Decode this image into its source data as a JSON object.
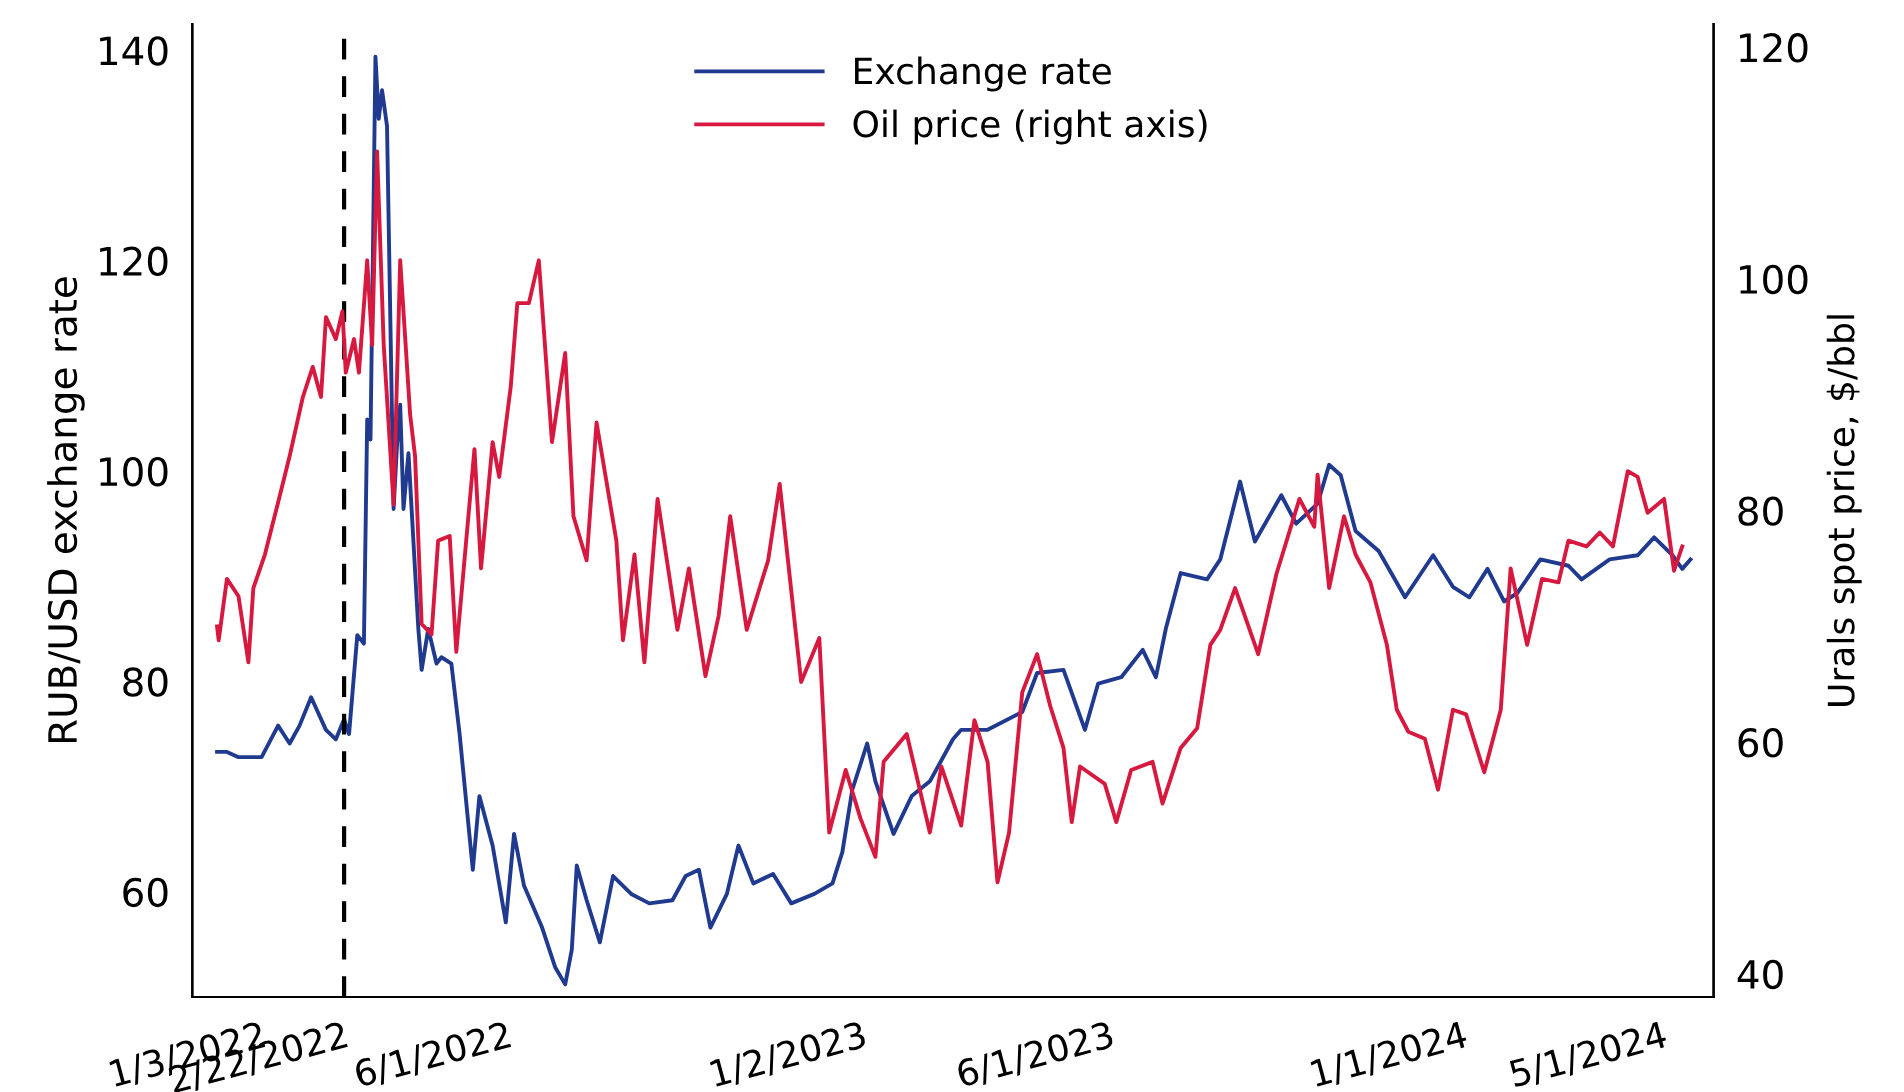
{
  "chart_data": {
    "type": "line",
    "ylabel": "RUB/USD exchange rate",
    "y2label": "Urals spot price, $/bbl",
    "xlim": [
      "2021-11-22",
      "2024-06-01"
    ],
    "xticks": [
      {
        "value": "2022-01-03",
        "label": "1/3/2022"
      },
      {
        "value": "2022-02-22",
        "label": "2/22/2022"
      },
      {
        "value": "2022-06-01",
        "label": "6/1/2022"
      },
      {
        "value": "2023-01-02",
        "label": "1/2/2023"
      },
      {
        "value": "2023-06-01",
        "label": "6/1/2023"
      },
      {
        "value": "2024-01-01",
        "label": "1/1/2024"
      },
      {
        "value": "2024-05-01",
        "label": "5/1/2024"
      }
    ],
    "ylim": [
      50,
      142.5
    ],
    "yticks": [
      60,
      80,
      100,
      120,
      140
    ],
    "y2lim": [
      38,
      122
    ],
    "y2ticks": [
      40,
      60,
      80,
      100,
      120
    ],
    "legend": "top",
    "grid": false,
    "ref_lines": [
      {
        "axis": "x",
        "value": "2022-02-22",
        "color": "#000000",
        "line_style": "dashed"
      }
    ],
    "series": [
      {
        "name": "Exchange rate",
        "color": "#1f3a8f",
        "axis": "y",
        "x": [
          "2021-12-07",
          "2021-12-13",
          "2021-12-20",
          "2022-01-03",
          "2022-01-13",
          "2022-01-20",
          "2022-01-26",
          "2022-02-02",
          "2022-02-11",
          "2022-02-17",
          "2022-02-22",
          "2022-02-25",
          "2022-03-02",
          "2022-03-06",
          "2022-03-08",
          "2022-03-10",
          "2022-03-13",
          "2022-03-15",
          "2022-03-17",
          "2022-03-20",
          "2022-03-24",
          "2022-03-26",
          "2022-03-28",
          "2022-03-30",
          "2022-04-02",
          "2022-04-08",
          "2022-04-10",
          "2022-04-14",
          "2022-04-19",
          "2022-04-22",
          "2022-04-28",
          "2022-05-03",
          "2022-05-11",
          "2022-05-15",
          "2022-05-23",
          "2022-05-31",
          "2022-06-05",
          "2022-06-11",
          "2022-06-22",
          "2022-06-30",
          "2022-07-06",
          "2022-07-10",
          "2022-07-13",
          "2022-07-19",
          "2022-07-27",
          "2022-08-04",
          "2022-08-15",
          "2022-08-26",
          "2022-09-09",
          "2022-09-17",
          "2022-09-25",
          "2022-10-02",
          "2022-10-12",
          "2022-10-19",
          "2022-10-28",
          "2022-11-09",
          "2022-11-20",
          "2022-12-04",
          "2022-12-15",
          "2022-12-21",
          "2022-12-27",
          "2023-01-05",
          "2023-01-10",
          "2023-01-21",
          "2023-02-01",
          "2023-02-12",
          "2023-02-26",
          "2023-03-03",
          "2023-03-19",
          "2023-04-09",
          "2023-04-18",
          "2023-05-04",
          "2023-05-17",
          "2023-05-25",
          "2023-06-08",
          "2023-06-21",
          "2023-06-29",
          "2023-07-05",
          "2023-07-14",
          "2023-07-30",
          "2023-08-07",
          "2023-08-19",
          "2023-08-28",
          "2023-09-13",
          "2023-09-22",
          "2023-10-05",
          "2023-10-12",
          "2023-10-19",
          "2023-10-28",
          "2023-11-11",
          "2023-11-27",
          "2023-12-14",
          "2023-12-26",
          "2024-01-05",
          "2024-01-16",
          "2024-01-26",
          "2024-02-03",
          "2024-02-17",
          "2024-03-05",
          "2024-03-13",
          "2024-03-30",
          "2024-04-16",
          "2024-04-26",
          "2024-05-07",
          "2024-05-13",
          "2024-05-18"
        ],
        "values": [
          73.3,
          73.3,
          72.8,
          72.8,
          75.8,
          74.1,
          75.8,
          78.5,
          75.4,
          74.5,
          76.4,
          75.0,
          84.4,
          83.6,
          104.9,
          103.0,
          139.4,
          133.5,
          136.2,
          132.8,
          96.4,
          102.3,
          106.3,
          96.4,
          101.7,
          85.0,
          81.1,
          85.0,
          81.7,
          82.3,
          81.7,
          75.0,
          62.1,
          69.1,
          64.4,
          57.1,
          65.5,
          60.6,
          56.6,
          52.8,
          51.2,
          54.5,
          62.5,
          59.2,
          55.2,
          61.5,
          59.8,
          58.9,
          59.2,
          61.5,
          62.1,
          56.6,
          59.8,
          64.4,
          60.8,
          61.7,
          58.9,
          59.8,
          60.8,
          63.8,
          69.7,
          74.1,
          70.5,
          65.5,
          69.1,
          70.5,
          74.5,
          75.4,
          75.4,
          77.1,
          80.8,
          81.1,
          75.4,
          79.8,
          80.4,
          83.0,
          80.4,
          85.0,
          90.3,
          89.7,
          91.6,
          99.0,
          93.3,
          97.7,
          95.0,
          96.9,
          100.6,
          99.6,
          94.3,
          92.4,
          88.0,
          92.0,
          89.0,
          88.0,
          90.7,
          87.6,
          88.4,
          91.6,
          91.0,
          89.7,
          91.6,
          92.0,
          93.7,
          92.0,
          90.7,
          91.6
        ]
      },
      {
        "name": "Oil price (right axis)",
        "color": "#d7193f",
        "axis": "y2",
        "x": [
          "2021-12-07",
          "2021-12-08",
          "2021-12-13",
          "2021-12-20",
          "2021-12-26",
          "2021-12-29",
          "2022-01-05",
          "2022-01-13",
          "2022-01-20",
          "2022-01-28",
          "2022-02-03",
          "2022-02-08",
          "2022-02-11",
          "2022-02-17",
          "2022-02-21",
          "2022-02-23",
          "2022-02-28",
          "2022-03-03",
          "2022-03-08",
          "2022-03-11",
          "2022-03-14",
          "2022-03-18",
          "2022-03-24",
          "2022-03-28",
          "2022-04-03",
          "2022-04-06",
          "2022-04-10",
          "2022-04-16",
          "2022-04-20",
          "2022-04-27",
          "2022-05-01",
          "2022-05-07",
          "2022-05-12",
          "2022-05-16",
          "2022-05-23",
          "2022-05-27",
          "2022-06-03",
          "2022-06-07",
          "2022-06-14",
          "2022-06-20",
          "2022-06-28",
          "2022-07-06",
          "2022-07-11",
          "2022-07-19",
          "2022-07-25",
          "2022-08-06",
          "2022-08-10",
          "2022-08-17",
          "2022-08-23",
          "2022-08-31",
          "2022-09-12",
          "2022-09-19",
          "2022-09-29",
          "2022-10-07",
          "2022-10-14",
          "2022-10-24",
          "2022-11-06",
          "2022-11-13",
          "2022-11-18",
          "2022-11-26",
          "2022-12-07",
          "2022-12-13",
          "2022-12-23",
          "2023-01-01",
          "2023-01-10",
          "2023-01-15",
          "2023-01-29",
          "2023-02-12",
          "2023-02-19",
          "2023-03-03",
          "2023-03-11",
          "2023-03-19",
          "2023-03-25",
          "2023-04-01",
          "2023-04-09",
          "2023-04-18",
          "2023-04-26",
          "2023-05-04",
          "2023-05-09",
          "2023-05-14",
          "2023-05-29",
          "2023-06-05",
          "2023-06-14",
          "2023-06-27",
          "2023-07-03",
          "2023-07-14",
          "2023-07-24",
          "2023-08-01",
          "2023-08-07",
          "2023-08-16",
          "2023-08-30",
          "2023-09-10",
          "2023-09-24",
          "2023-10-03",
          "2023-10-05",
          "2023-10-12",
          "2023-10-21",
          "2023-10-28",
          "2023-11-06",
          "2023-11-16",
          "2023-11-22",
          "2023-11-29",
          "2023-12-09",
          "2023-12-17",
          "2023-12-26",
          "2024-01-03",
          "2024-01-14",
          "2024-01-24",
          "2024-01-30",
          "2024-02-09",
          "2024-02-18",
          "2024-02-28",
          "2024-03-05",
          "2024-03-16",
          "2024-03-24",
          "2024-04-01",
          "2024-04-10",
          "2024-04-16",
          "2024-04-22",
          "2024-05-02",
          "2024-05-08",
          "2024-05-13"
        ],
        "values": [
          70.0,
          68.8,
          74.1,
          72.6,
          66.9,
          73.3,
          76.2,
          80.7,
          84.7,
          89.8,
          92.4,
          89.8,
          96.7,
          94.8,
          97.2,
          91.9,
          94.8,
          91.9,
          101.6,
          94.3,
          111.0,
          94.3,
          80.5,
          101.6,
          88.3,
          84.7,
          70.2,
          69.3,
          77.4,
          77.8,
          67.8,
          77.4,
          85.3,
          75.0,
          85.9,
          82.9,
          90.7,
          97.9,
          97.9,
          101.6,
          85.9,
          93.6,
          79.5,
          75.7,
          87.6,
          77.4,
          68.8,
          76.2,
          66.9,
          81.0,
          69.7,
          75.0,
          65.7,
          70.9,
          79.5,
          69.7,
          75.7,
          82.3,
          75.7,
          65.2,
          69.0,
          52.2,
          57.6,
          53.4,
          50.1,
          58.3,
          60.7,
          52.2,
          57.9,
          52.8,
          61.9,
          58.3,
          47.9,
          52.2,
          64.3,
          67.6,
          63.1,
          59.5,
          53.1,
          57.9,
          56.4,
          53.1,
          57.6,
          58.3,
          54.7,
          59.5,
          61.2,
          68.4,
          69.7,
          73.3,
          67.6,
          74.5,
          81.0,
          78.6,
          83.1,
          73.3,
          79.5,
          76.2,
          73.8,
          68.4,
          62.8,
          60.9,
          60.3,
          55.9,
          62.8,
          62.4,
          57.4,
          62.8,
          75.0,
          68.4,
          74.1,
          73.8,
          77.4,
          76.9,
          78.1,
          76.9,
          83.4,
          82.9,
          79.8,
          81.0,
          74.8,
          76.9
        ]
      }
    ]
  }
}
